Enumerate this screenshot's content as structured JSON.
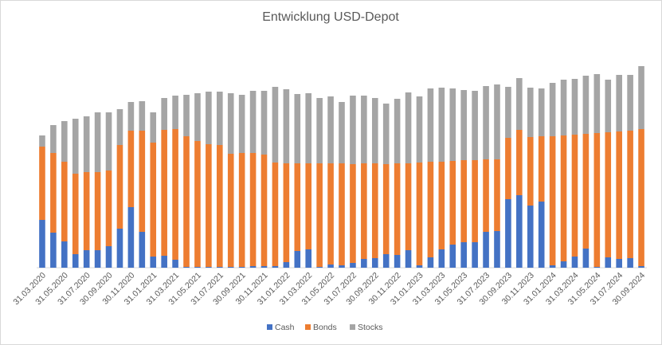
{
  "chart_data": {
    "type": "bar",
    "stacked": true,
    "title": "Entwicklung USD-Depot",
    "categories": [
      "31.03.2020",
      null,
      "31.05.2020",
      null,
      "31.07.2020",
      null,
      "30.09.2020",
      null,
      "30.11.2020",
      null,
      "31.01.2021",
      null,
      "31.03.2021",
      null,
      "31.05.2021",
      null,
      "31.07.2021",
      null,
      "30.09.2021",
      null,
      "30.11.2021",
      null,
      "31.01.2022",
      null,
      "31.03.2022",
      null,
      "31.05.2022",
      null,
      "31.07.2022",
      null,
      "30.09.2022",
      null,
      "30.11.2022",
      null,
      "31.01.2023",
      null,
      "31.03.2023",
      null,
      "31.05.2023",
      null,
      "31.07.2023",
      null,
      "30.09.2023",
      null,
      "30.11.2023",
      null,
      "31.01.2024",
      null,
      "31.03.2024",
      null,
      "31.05.2024",
      null,
      "31.07.2024",
      null,
      "30.09.2024"
    ],
    "series": [
      {
        "name": "Cash",
        "color": "#4472c4",
        "values": [
          60,
          44,
          33,
          17,
          22,
          22,
          27,
          49,
          76,
          45,
          14,
          15,
          10,
          1,
          1,
          1,
          1,
          1,
          1,
          2,
          2,
          2,
          7,
          21,
          23,
          1,
          4,
          3,
          6,
          11,
          12,
          17,
          16,
          22,
          3,
          13,
          23,
          29,
          32,
          32,
          45,
          46,
          86,
          91,
          78,
          83,
          3,
          8,
          14,
          24,
          1,
          13,
          11,
          12,
          2
        ]
      },
      {
        "name": "Bonds",
        "color": "#ed7d31",
        "values": [
          92,
          100,
          100,
          101,
          98,
          98,
          95,
          105,
          96,
          127,
          143,
          158,
          164,
          164,
          158,
          154,
          153,
          142,
          143,
          142,
          140,
          130,
          124,
          110,
          108,
          130,
          127,
          128,
          124,
          120,
          119,
          113,
          115,
          109,
          129,
          120,
          110,
          105,
          103,
          103,
          91,
          90,
          77,
          82,
          86,
          82,
          162,
          158,
          153,
          144,
          168,
          157,
          160,
          160,
          172
        ]
      },
      {
        "name": "Stocks",
        "color": "#a5a5a5",
        "values": [
          14,
          35,
          51,
          69,
          70,
          75,
          73,
          45,
          36,
          37,
          38,
          40,
          42,
          52,
          60,
          66,
          67,
          76,
          73,
          78,
          80,
          95,
          93,
          87,
          88,
          82,
          84,
          77,
          86,
          85,
          82,
          76,
          81,
          89,
          83,
          92,
          93,
          91,
          88,
          87,
          92,
          94,
          64,
          65,
          62,
          60,
          67,
          70,
          70,
          73,
          74,
          66,
          71,
          70,
          79
        ]
      }
    ],
    "ylim": [
      0,
      280
    ],
    "legend": "bottom"
  }
}
